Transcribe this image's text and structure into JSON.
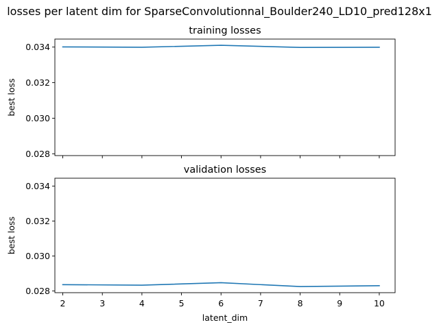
{
  "chart_data": {
    "title": "losses per latent dim for SparseConvolutionnal_Boulder240_LD10_pred128x1",
    "shared_x": true,
    "xlabel": "latent_dim",
    "xlim": [
      1.8,
      10.4
    ],
    "xticks": [
      2,
      3,
      4,
      5,
      6,
      7,
      8,
      9,
      10
    ],
    "subplots": [
      {
        "type": "line",
        "title": "training losses",
        "ylabel": "best loss",
        "ylim": [
          0.0279,
          0.03445
        ],
        "yticks": [
          0.028,
          0.03,
          0.032,
          0.034
        ],
        "ytick_labels": [
          "0.028",
          "0.030",
          "0.032",
          "0.034"
        ],
        "x": [
          2,
          4,
          6,
          8,
          10
        ],
        "y": [
          0.03401,
          0.03399,
          0.0341,
          0.03398,
          0.03399
        ],
        "color": "#1f77b4"
      },
      {
        "type": "line",
        "title": "validation losses",
        "ylabel": "best loss",
        "ylim": [
          0.0279,
          0.03445
        ],
        "yticks": [
          0.028,
          0.03,
          0.032,
          0.034
        ],
        "ytick_labels": [
          "0.028",
          "0.030",
          "0.032",
          "0.034"
        ],
        "x": [
          2,
          4,
          6,
          8,
          10
        ],
        "y": [
          0.02836,
          0.02833,
          0.02847,
          0.02825,
          0.0283
        ],
        "color": "#1f77b4"
      }
    ]
  }
}
